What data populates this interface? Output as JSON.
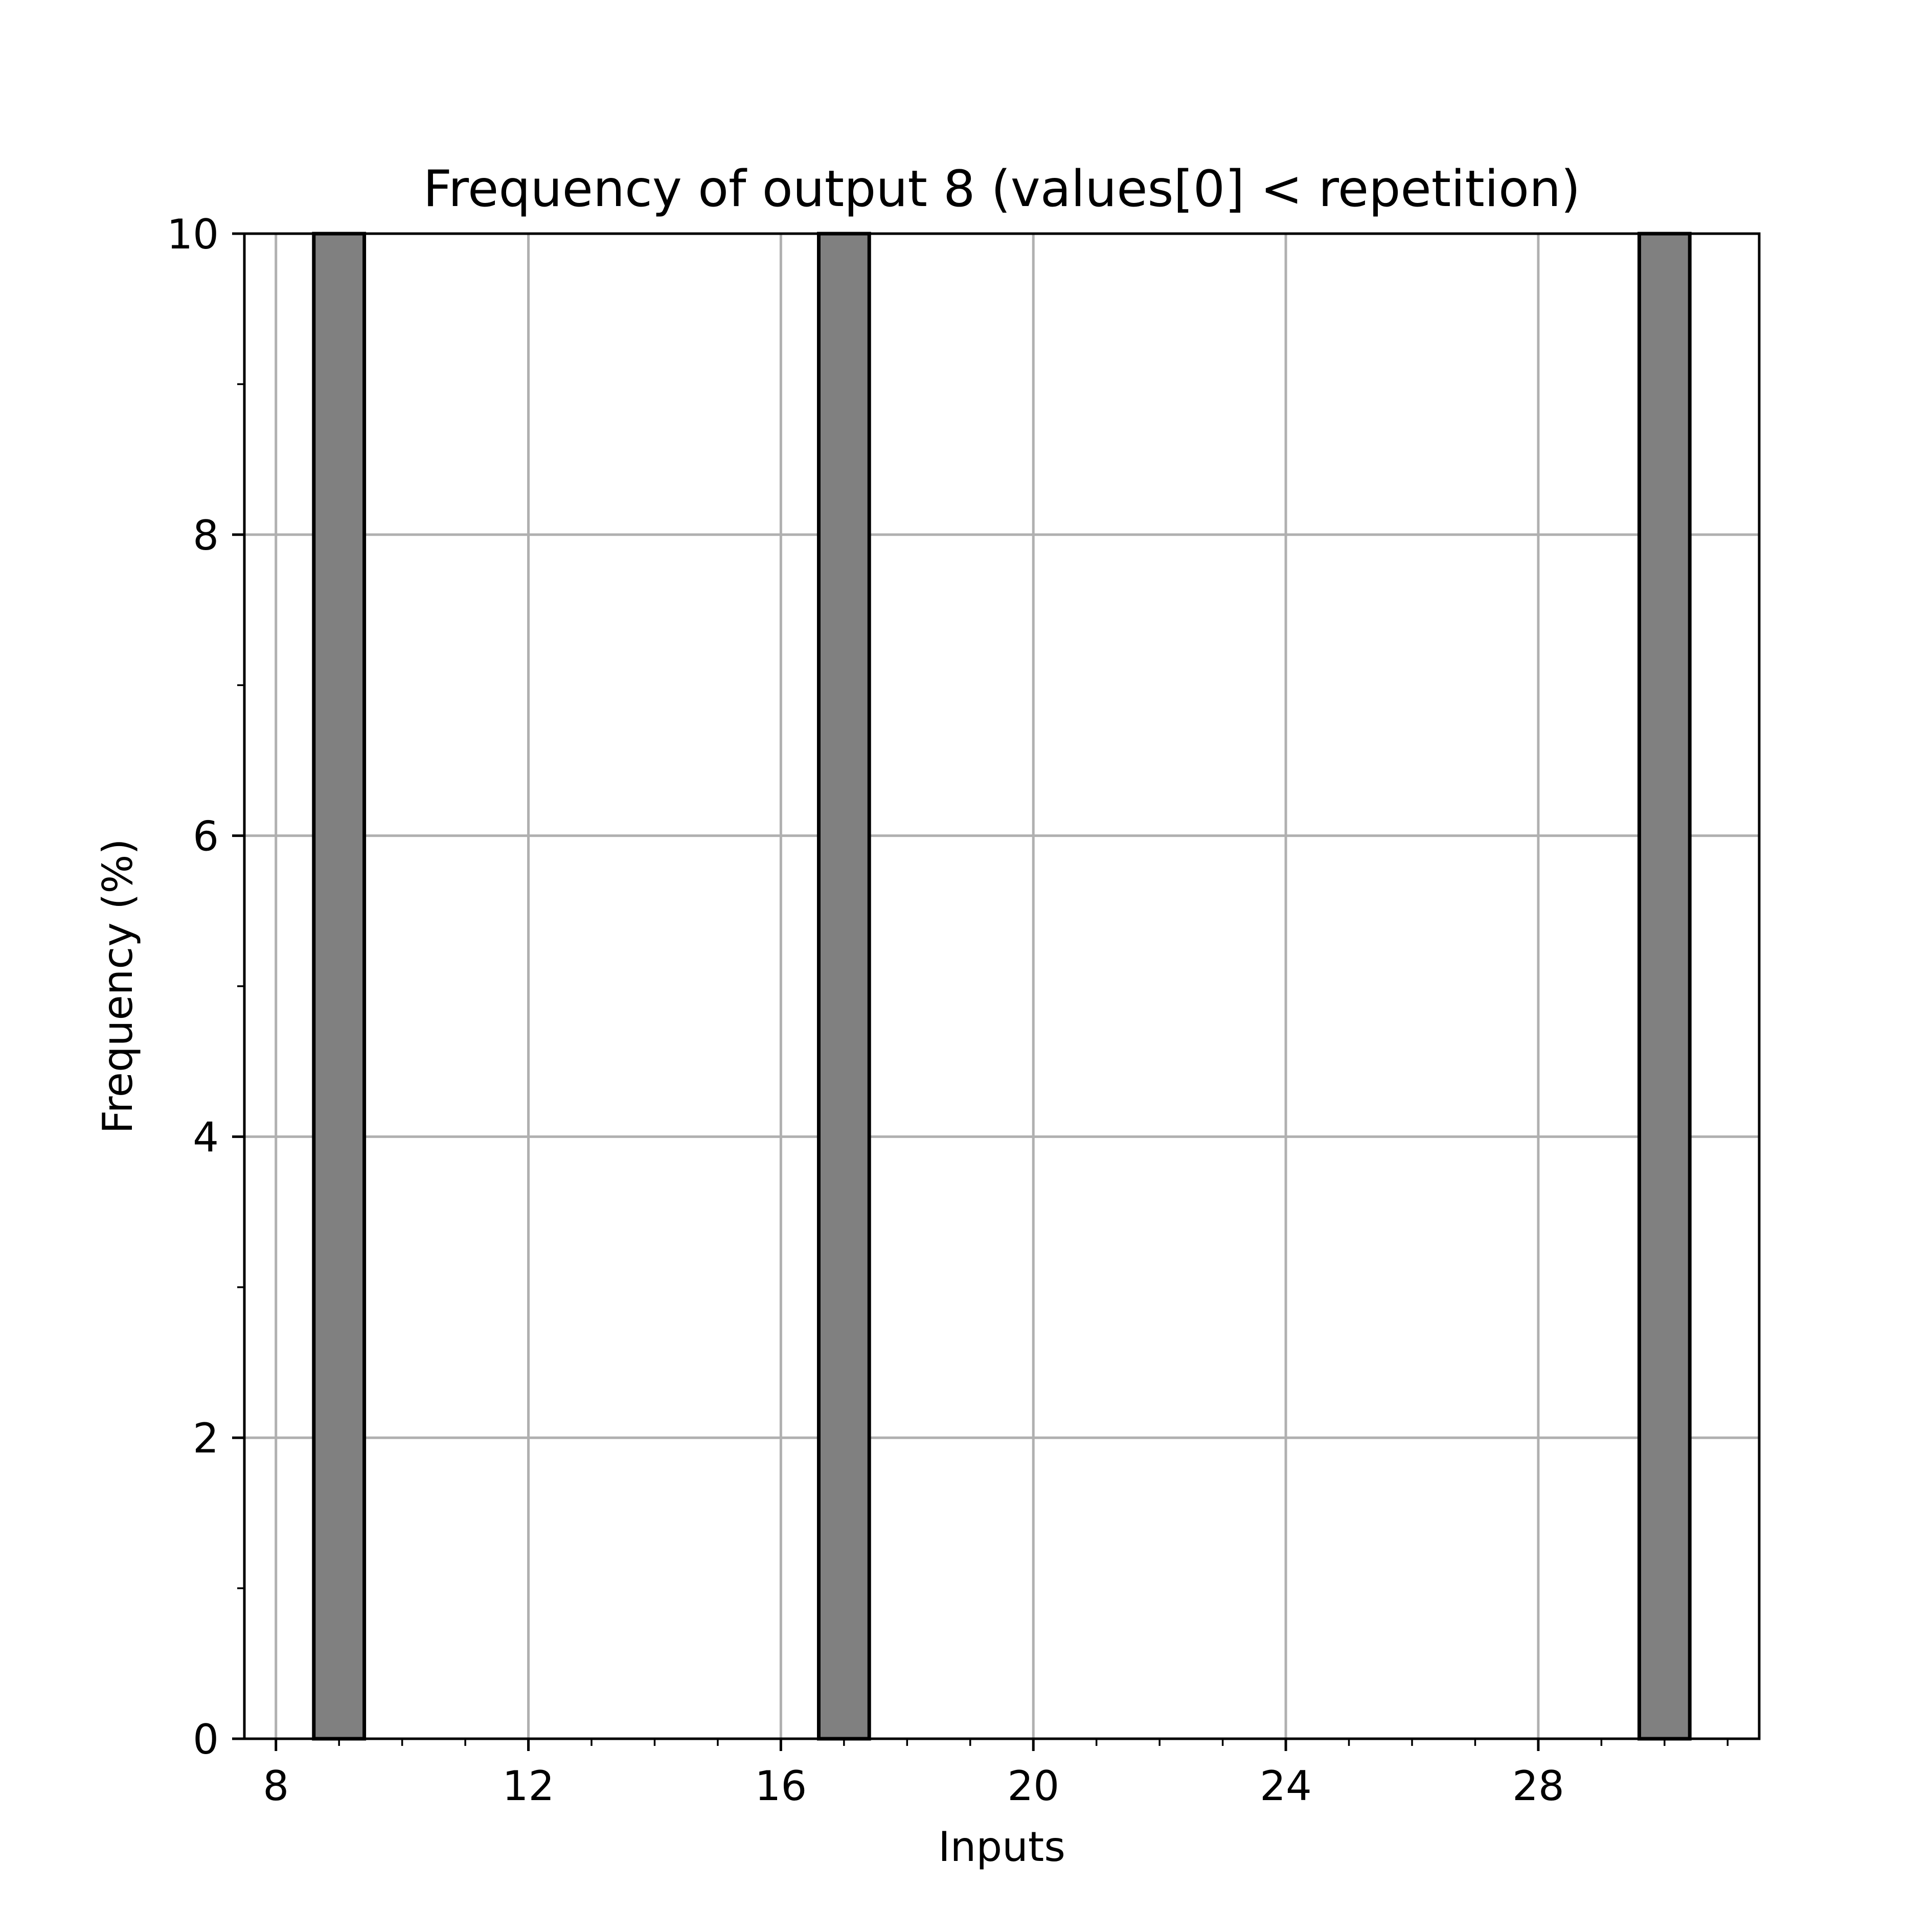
{
  "chart_data": {
    "type": "bar",
    "title": "Frequency of output 8 (values[0] < repetition)",
    "xlabel": "Inputs",
    "ylabel": "Frequency (%)",
    "xlim": [
      7.5,
      31.5
    ],
    "ylim": [
      0,
      10
    ],
    "x_ticks": [
      8,
      12,
      16,
      20,
      24,
      28
    ],
    "x_tick_labels": [
      "8",
      "12",
      "16",
      "20",
      "24",
      "28"
    ],
    "x_minor_step": 1,
    "y_ticks": [
      0,
      2,
      4,
      6,
      8,
      10
    ],
    "y_tick_labels": [
      "0",
      "2",
      "4",
      "6",
      "8",
      "10"
    ],
    "y_minor_step": 1,
    "grid": true,
    "bar_width": 0.8,
    "colors": {
      "bar_fill": "#808080",
      "bar_edge": "#000000",
      "grid": "#b0b0b0"
    },
    "bars": [
      {
        "x": 9,
        "value": 10
      },
      {
        "x": 17,
        "value": 10
      },
      {
        "x": 30,
        "value": 10
      }
    ]
  }
}
